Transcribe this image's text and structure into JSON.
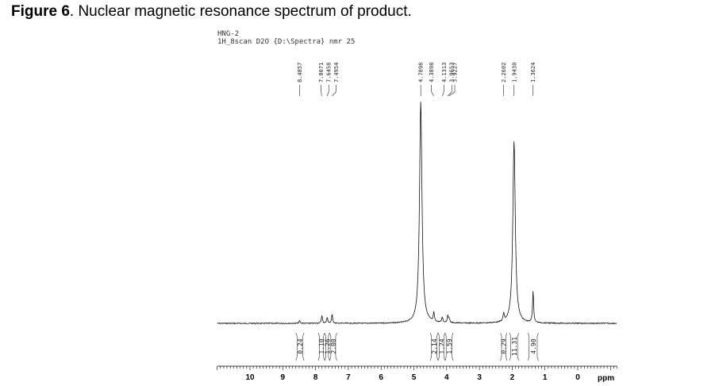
{
  "caption": {
    "bold": "Figure 6",
    "rest": ". Nuclear magnetic resonance spectrum of product."
  },
  "header": {
    "line1": "HNG-2",
    "line2": "1H_8scan D2O {D:\\Spectra} nmr 25"
  },
  "chart_data": {
    "type": "line",
    "title": "",
    "xlabel": "ppm",
    "ylabel": "",
    "xlim": [
      11.0,
      -1.2
    ],
    "x_reversed": true,
    "grid": false,
    "x_ticks": [
      10,
      9,
      8,
      7,
      6,
      5,
      4,
      3,
      2,
      1,
      0
    ],
    "peaks": [
      {
        "ppm": 8.4857,
        "label": "8.4857",
        "rel_height": 0.012
      },
      {
        "ppm": 7.8071,
        "label": "7.8071",
        "rel_height": 0.035
      },
      {
        "ppm": 7.6458,
        "label": "7.6458",
        "rel_height": 0.025
      },
      {
        "ppm": 7.4954,
        "label": "7.4954",
        "rel_height": 0.04
      },
      {
        "ppm": 4.7898,
        "label": "4.7898",
        "rel_height": 1.0
      },
      {
        "ppm": 4.3898,
        "label": "4.3898",
        "rel_height": 0.04
      },
      {
        "ppm": 4.1313,
        "label": "4.1313",
        "rel_height": 0.025
      },
      {
        "ppm": 3.9653,
        "label": "3.9653",
        "rel_height": 0.03
      },
      {
        "ppm": 3.9227,
        "label": "3.9227",
        "rel_height": 0.02
      },
      {
        "ppm": 2.2602,
        "label": "2.2602",
        "rel_height": 0.035
      },
      {
        "ppm": 1.943,
        "label": "1.9430",
        "rel_height": 0.82
      },
      {
        "ppm": 1.3624,
        "label": "1.3624",
        "rel_height": 0.14
      }
    ],
    "integrals": [
      {
        "from": 8.6,
        "to": 8.35,
        "value": "0.24"
      },
      {
        "from": 7.92,
        "to": 7.72,
        "value": "1.10"
      },
      {
        "from": 7.72,
        "to": 7.57,
        "value": "1.26"
      },
      {
        "from": 7.57,
        "to": 7.35,
        "value": "2.00"
      },
      {
        "from": 4.5,
        "to": 4.26,
        "value": "2.14"
      },
      {
        "from": 4.26,
        "to": 4.05,
        "value": "1.24"
      },
      {
        "from": 4.05,
        "to": 3.8,
        "value": "1.59"
      },
      {
        "from": 2.36,
        "to": 2.16,
        "value": "0.29"
      },
      {
        "from": 2.08,
        "to": 1.8,
        "value": "11.31"
      },
      {
        "from": 1.52,
        "to": 1.2,
        "value": "4.90"
      }
    ]
  }
}
